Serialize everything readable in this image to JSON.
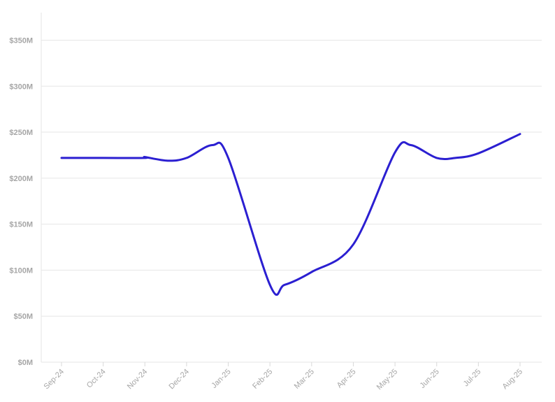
{
  "chart_data": {
    "type": "line",
    "title": "",
    "xlabel": "",
    "ylabel": "",
    "categories": [
      "Sep-24",
      "Oct-24",
      "Nov-24",
      "Dec-24",
      "Jan-25",
      "Feb-25",
      "Mar-25",
      "Apr-25",
      "May-25",
      "Jun-25",
      "Jul-25",
      "Aug-25"
    ],
    "yticks": [
      0,
      50,
      100,
      150,
      200,
      250,
      300,
      350
    ],
    "ytick_labels": [
      "$0M",
      "$50M",
      "$100M",
      "$150M",
      "$200M",
      "$250M",
      "$300M",
      "$350M"
    ],
    "ylim": [
      0,
      380
    ],
    "grid": true,
    "legend": "none",
    "series": [
      {
        "color": "#2b1fd1",
        "values": [
          222,
          222,
          222,
          222,
          222,
          84,
          98,
          128,
          228,
          222,
          227,
          248
        ],
        "smoothing": "monotone",
        "annotated_peaks_between": [
          {
            "between": [
              "Dec-24",
              "Jan-25"
            ],
            "value": 235
          },
          {
            "between": [
              "May-25",
              "Jun-25"
            ],
            "value": 235
          },
          {
            "between": [
              "Feb-25",
              "Mar-25"
            ],
            "value": 84
          }
        ]
      }
    ]
  }
}
